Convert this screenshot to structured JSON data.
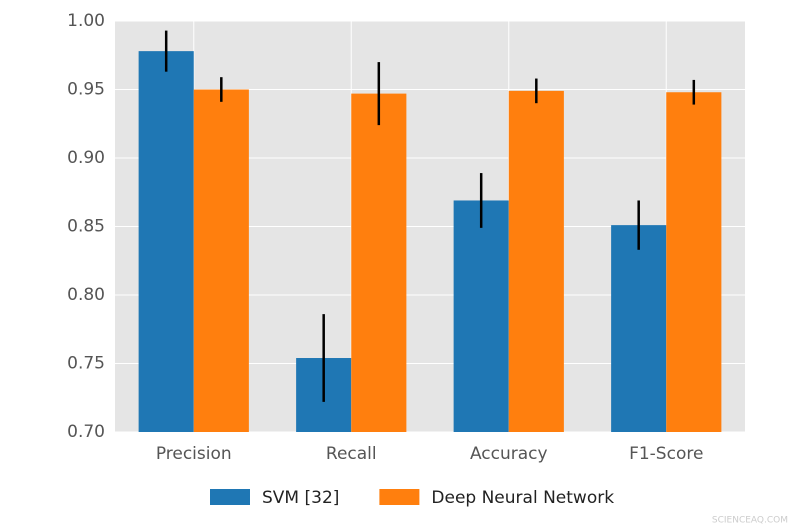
{
  "chart_data": {
    "type": "bar",
    "categories": [
      "Precision",
      "Recall",
      "Accuracy",
      "F1-Score"
    ],
    "series": [
      {
        "name": "SVM [32]",
        "color": "#1f77b4",
        "values": [
          0.978,
          0.754,
          0.869,
          0.851
        ],
        "errors": [
          0.015,
          0.032,
          0.02,
          0.018
        ]
      },
      {
        "name": "Deep Neural Network",
        "color": "#ff7f0e",
        "values": [
          0.95,
          0.947,
          0.949,
          0.948
        ],
        "errors": [
          0.009,
          0.023,
          0.009,
          0.009
        ]
      }
    ],
    "ylim": [
      0.7,
      1.0
    ],
    "yticks": [
      {
        "value": 0.7,
        "label": "0.70"
      },
      0.75,
      {
        "value": 0.8,
        "label": "0.80"
      },
      0.85,
      {
        "value": 0.9,
        "label": "0.90"
      },
      0.95,
      {
        "value": 1.0,
        "label": "1.00"
      }
    ],
    "grid": true,
    "legend": "bottom",
    "watermark": "SCIENCEAQ.COM"
  }
}
